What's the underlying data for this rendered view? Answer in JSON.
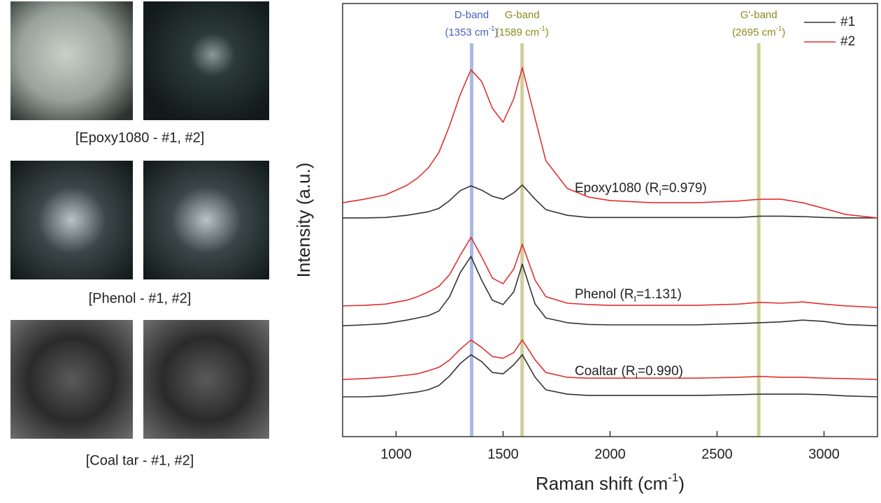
{
  "panels": [
    {
      "caption": "[Epoxy1080 - #1, #2]"
    },
    {
      "caption": "[Phenol  - #1, #2]"
    },
    {
      "caption": "[Coal tar - #1, #2]"
    }
  ],
  "chart_data": {
    "type": "line",
    "ylabel": "Intensity (a.u.)",
    "xlabel": [
      "Raman shift (cm",
      "-1",
      ")"
    ],
    "xlim": [
      750,
      3250
    ],
    "xticks": [
      1000,
      1500,
      2000,
      2500,
      3000
    ],
    "ylim": [
      0,
      100
    ],
    "grid": false,
    "legend": "upper right",
    "bands": [
      {
        "name": "D-band",
        "position": [
          "(1353 cm",
          "-1",
          ")"
        ],
        "x": 1353,
        "color": "#a9b8e4",
        "text_color": "#4a5fc0"
      },
      {
        "name": "G-band",
        "position": [
          "(1589 cm",
          "-1",
          ")"
        ],
        "x": 1589,
        "color": "#cfcf98",
        "text_color": "#8a8a1e"
      },
      {
        "name": "G'-band",
        "position": [
          "(2695 cm",
          "-1",
          ")"
        ],
        "x": 2695,
        "color": "#cfcf98",
        "text_color": "#8a8a1e"
      }
    ],
    "samples": [
      [
        "Epoxy1080 (R",
        "I",
        "=0.979)"
      ],
      [
        "Phenol (R",
        "I",
        "=1.131)"
      ],
      [
        "Coaltar (R",
        "I",
        "=0.990)"
      ]
    ],
    "x": [
      750,
      850,
      950,
      1050,
      1100,
      1150,
      1200,
      1250,
      1300,
      1350,
      1400,
      1450,
      1500,
      1550,
      1590,
      1650,
      1700,
      1800,
      1900,
      2000,
      2200,
      2400,
      2600,
      2700,
      2800,
      2900,
      3000,
      3100,
      3250
    ],
    "series": [
      {
        "name": "#1",
        "color": "#333333",
        "values": [
          [
            50.5,
            50.5,
            50.6,
            51.1,
            51.5,
            51.9,
            52.7,
            54.5,
            56.8,
            57.9,
            56.9,
            55.5,
            54.8,
            56.3,
            58.1,
            54.8,
            52.4,
            51.1,
            50.6,
            50.6,
            50.6,
            50.6,
            50.6,
            50.9,
            50.9,
            50.8,
            50.6,
            50.5,
            50.5
          ],
          [
            25.6,
            25.8,
            26.1,
            26.9,
            27.4,
            27.9,
            29.0,
            32.3,
            37.9,
            41.6,
            36.1,
            31.5,
            30.5,
            33.4,
            39.8,
            30.6,
            27.4,
            26.3,
            25.9,
            25.8,
            25.8,
            25.8,
            26.1,
            26.3,
            26.5,
            26.9,
            26.6,
            25.9,
            25.6
          ],
          [
            9.2,
            9.2,
            9.4,
            10.0,
            10.3,
            10.8,
            11.8,
            14.0,
            16.9,
            18.9,
            17.3,
            14.8,
            14.5,
            16.6,
            18.9,
            13.7,
            10.8,
            9.8,
            9.5,
            9.5,
            9.5,
            9.5,
            9.7,
            9.8,
            9.8,
            9.8,
            9.7,
            9.4,
            9.2
          ]
        ]
      },
      {
        "name": "#2",
        "color": "#e03030",
        "values": [
          [
            54.0,
            54.8,
            55.8,
            58.0,
            59.7,
            62.0,
            65.6,
            71.8,
            79.0,
            84.7,
            82.0,
            75.8,
            72.6,
            78.0,
            85.2,
            73.4,
            63.7,
            57.3,
            55.3,
            54.5,
            54.0,
            54.0,
            54.4,
            54.8,
            54.8,
            54.0,
            52.7,
            51.3,
            50.5
          ],
          [
            30.2,
            30.3,
            30.6,
            31.5,
            32.3,
            33.4,
            34.7,
            37.4,
            41.9,
            46.0,
            41.5,
            36.6,
            35.3,
            38.7,
            44.4,
            36.1,
            32.3,
            30.8,
            30.5,
            30.3,
            30.3,
            30.3,
            30.6,
            31.0,
            30.8,
            31.1,
            30.6,
            30.2,
            29.8
          ],
          [
            13.2,
            13.4,
            13.7,
            14.2,
            14.5,
            15.2,
            16.0,
            17.7,
            20.2,
            22.3,
            20.6,
            18.5,
            18.1,
            19.4,
            22.3,
            17.7,
            14.8,
            13.7,
            13.5,
            13.5,
            13.5,
            13.5,
            13.7,
            13.9,
            13.7,
            13.7,
            13.5,
            13.4,
            13.2
          ]
        ]
      }
    ]
  }
}
